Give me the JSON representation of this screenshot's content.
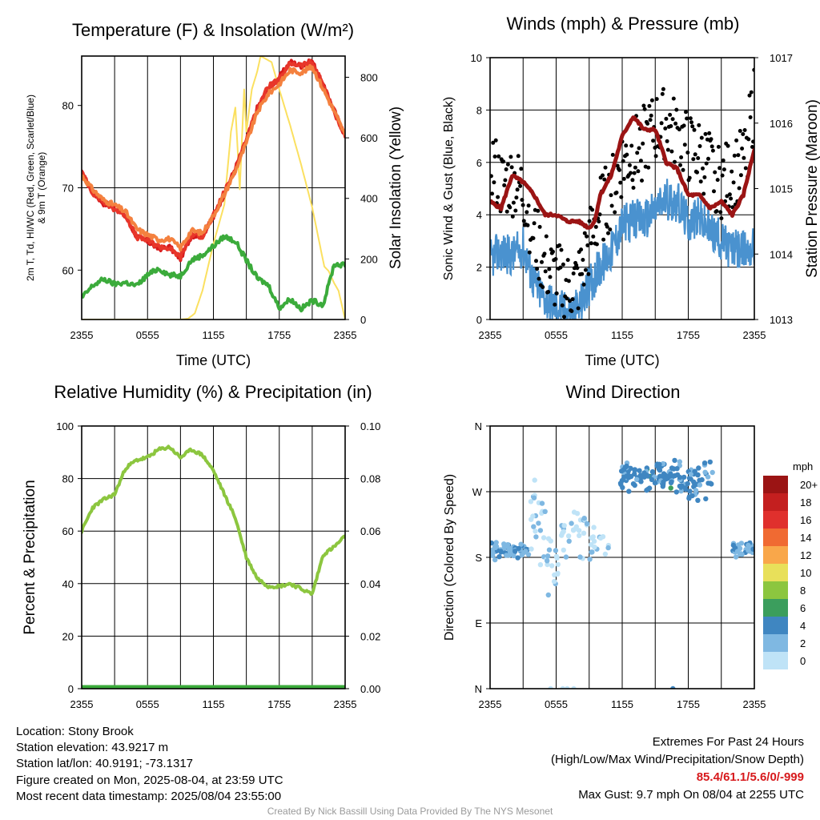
{
  "colors": {
    "temp": "#d7191c",
    "hiwc": "#e8362a",
    "t9m": "#f4813f",
    "dew": "#3bab3b",
    "solar": "#fbe060",
    "gust": "#000000",
    "wind": "#4a92cf",
    "pressure": "#9b1414",
    "rh": "#8cc63f",
    "precip": "#3bab3b"
  },
  "chart_data": [
    {
      "type": "line",
      "title": "Temperature (F) & Insolation (W/m²)",
      "xlabel": "Time (UTC)",
      "ylabel": "2m T, Td, HI/WC (Red, Green, Scarlet/Blue) & 9m T (Orange)",
      "y2label": "Solar Insolation (Yellow)",
      "xticks": [
        "2355",
        "0555",
        "1155",
        "1755",
        "2355"
      ],
      "yticks": [
        "60",
        "70",
        "80"
      ],
      "y2ticks": [
        "0",
        "200",
        "400",
        "600",
        "800"
      ],
      "x_hours": [
        0,
        24
      ],
      "ylim": [
        54,
        86
      ],
      "y2lim": [
        0,
        870
      ],
      "grid": true,
      "series": [
        {
          "key": "temp",
          "x": [
            0,
            1,
            2,
            3,
            4,
            5,
            6,
            7,
            8,
            9,
            10,
            11,
            12,
            13,
            14,
            15,
            16,
            17,
            18,
            19,
            20,
            21,
            22,
            23,
            24
          ],
          "values": [
            71.8,
            69.5,
            68.1,
            67.6,
            66.5,
            64.1,
            63.5,
            62.6,
            62.8,
            61.4,
            64.2,
            64.2,
            66.4,
            69.3,
            72.4,
            75.8,
            79.7,
            82.1,
            83.4,
            85.3,
            84.8,
            85.4,
            82.4,
            79.4,
            76.3
          ]
        },
        {
          "key": "hiwc",
          "x": [
            0,
            1,
            2,
            3,
            4,
            5,
            6,
            7,
            8,
            9,
            10,
            11,
            12,
            13,
            14,
            15,
            16,
            17,
            18,
            19,
            20,
            21,
            22,
            23,
            24
          ],
          "values": [
            71.9,
            69.4,
            68.3,
            67.4,
            66.7,
            64.0,
            63.6,
            62.9,
            62.6,
            61.6,
            64.3,
            64.1,
            66.6,
            69.5,
            72.2,
            75.9,
            79.6,
            82.3,
            83.1,
            85.1,
            84.9,
            85.2,
            82.6,
            79.2,
            76.4
          ]
        },
        {
          "key": "t9m",
          "x": [
            0,
            1,
            2,
            3,
            4,
            5,
            6,
            7,
            8,
            9,
            10,
            11,
            12,
            13,
            14,
            15,
            16,
            17,
            18,
            19,
            20,
            21,
            22,
            23,
            24
          ],
          "values": [
            71.5,
            69.8,
            68.5,
            67.9,
            67.1,
            65.0,
            64.3,
            63.7,
            63.8,
            62.7,
            64.8,
            64.5,
            66.6,
            69.2,
            72.1,
            75.4,
            79.2,
            81.4,
            82.6,
            84.3,
            84.0,
            84.7,
            82.0,
            79.3,
            76.4
          ]
        },
        {
          "key": "dew",
          "x": [
            0,
            1,
            2,
            3,
            4,
            5,
            6,
            7,
            8,
            9,
            10,
            11,
            12,
            13,
            14,
            15,
            16,
            17,
            18,
            19,
            20,
            21,
            22,
            23,
            24
          ],
          "values": [
            56.6,
            58.1,
            58.9,
            58.3,
            58.5,
            58.1,
            59.4,
            60.2,
            59.4,
            59.3,
            61.2,
            61.8,
            62.9,
            64.1,
            63.5,
            61.2,
            59.0,
            58.2,
            55.4,
            56.5,
            55.3,
            56.3,
            55.8,
            60.7,
            60.6
          ]
        },
        {
          "key": "solar",
          "axis": "y2",
          "x": [
            0,
            4,
            9,
            9.7,
            10.3,
            11,
            12,
            13,
            13.6,
            14,
            14.4,
            14.8,
            15,
            15.5,
            16,
            16.3,
            16.8,
            17.3,
            18,
            19,
            20,
            21,
            22.1,
            22.5,
            23,
            23.4,
            24
          ],
          "values": [
            0,
            0,
            0,
            3,
            20,
            95,
            250,
            380,
            620,
            700,
            430,
            760,
            620,
            760,
            820,
            870,
            860,
            850,
            760,
            640,
            510,
            370,
            175,
            160,
            120,
            95,
            0
          ]
        }
      ]
    },
    {
      "type": "line",
      "title": "Winds (mph) & Pressure (mb)",
      "xlabel": "Time (UTC)",
      "ylabel": "Sonic Wind & Gust (Blue, Black)",
      "y2label": "Station Pressure (Maroon)",
      "xticks": [
        "2355",
        "0555",
        "1155",
        "1755",
        "2355"
      ],
      "yticks": [
        "0",
        "2",
        "4",
        "6",
        "8",
        "10"
      ],
      "y2ticks": [
        "1013",
        "1014",
        "1015",
        "1016",
        "1017"
      ],
      "x_hours": [
        0,
        24
      ],
      "ylim": [
        0,
        10
      ],
      "y2lim": [
        1013,
        1017
      ],
      "grid": true,
      "series": [
        {
          "key": "wind",
          "name": "Sonic Wind",
          "x": [
            0,
            1,
            2,
            3,
            4,
            5,
            6,
            7,
            8,
            9,
            10,
            11,
            12,
            13,
            14,
            15,
            16,
            17,
            18,
            19,
            20,
            21,
            22,
            23,
            24
          ],
          "values": [
            2.3,
            2.6,
            2.4,
            2.8,
            1.4,
            0.8,
            0.5,
            0.3,
            0.4,
            1.3,
            2.0,
            2.6,
            3.6,
            3.8,
            3.8,
            4.2,
            4.6,
            4.5,
            3.7,
            3.9,
            3.4,
            3.0,
            2.7,
            2.6,
            2.8
          ]
        },
        {
          "key": "gust",
          "name": "Gust",
          "x": [
            0,
            1,
            2,
            3,
            4,
            5,
            6,
            7,
            8,
            9,
            10,
            11,
            12,
            13,
            14,
            15,
            16,
            17,
            18,
            19,
            20,
            21,
            22,
            23,
            24
          ],
          "values": [
            6.2,
            5.1,
            5.3,
            4.9,
            3.2,
            2.0,
            1.6,
            1.2,
            1.4,
            2.9,
            4.1,
            4.8,
            6.0,
            6.3,
            6.8,
            7.3,
            7.5,
            7.0,
            6.5,
            6.3,
            5.8,
            5.2,
            5.6,
            5.9,
            8.3
          ]
        },
        {
          "key": "pressure",
          "name": "Station Pressure",
          "axis": "y2",
          "x": [
            0,
            1,
            2,
            3,
            4,
            5,
            6,
            7,
            8,
            9,
            9.5,
            10,
            11,
            12,
            13,
            14,
            15,
            16,
            17,
            18,
            19,
            20,
            21,
            22,
            23,
            24
          ],
          "values": [
            1014.8,
            1014.7,
            1015.2,
            1015.1,
            1014.9,
            1014.6,
            1014.6,
            1014.5,
            1014.5,
            1014.4,
            1014.5,
            1014.9,
            1015.2,
            1015.8,
            1016.1,
            1015.9,
            1015.9,
            1015.4,
            1015.3,
            1014.9,
            1014.9,
            1014.7,
            1014.8,
            1014.6,
            1014.9,
            1015.6
          ]
        }
      ]
    },
    {
      "type": "line",
      "title": "Relative Humidity (%) & Precipitation (in)",
      "xlabel": "",
      "ylabel": "Percent & Precipitation",
      "xticks": [
        "2355",
        "0555",
        "1155",
        "1755",
        "2355"
      ],
      "yticks": [
        "0",
        "20",
        "40",
        "60",
        "80",
        "100"
      ],
      "y2ticks": [
        "0.00",
        "0.02",
        "0.04",
        "0.06",
        "0.08",
        "0.10"
      ],
      "x_hours": [
        0,
        24
      ],
      "ylim": [
        0,
        100
      ],
      "y2lim": [
        0,
        0.1
      ],
      "grid": true,
      "series": [
        {
          "key": "rh",
          "name": "Relative Humidity",
          "x": [
            0,
            1,
            2,
            3,
            4,
            5,
            6,
            7,
            8,
            9,
            10,
            11,
            12,
            13,
            14,
            15,
            16,
            17,
            18,
            19,
            20,
            21,
            22,
            23,
            24
          ],
          "values": [
            60,
            69,
            72,
            74,
            84,
            87,
            88,
            91,
            92,
            88,
            91,
            89,
            83,
            74,
            65,
            50,
            42,
            39,
            39,
            40,
            38,
            36,
            51,
            54,
            58
          ]
        },
        {
          "key": "precip",
          "name": "Precipitation",
          "axis": "y2",
          "x": [
            0,
            24
          ],
          "values": [
            0,
            0
          ]
        }
      ]
    },
    {
      "type": "scatter",
      "title": "Wind Direction",
      "ylabel": "Direction (Colored By Speed)",
      "xticks": [
        "2355",
        "0555",
        "1155",
        "1755",
        "2355"
      ],
      "yticks": [
        "N",
        "E",
        "S",
        "W",
        "N"
      ],
      "x_hours": [
        0,
        24
      ],
      "ylim": [
        0,
        360
      ],
      "grid": true,
      "legend": {
        "title": "mph",
        "labels": [
          "20+",
          "18",
          "16",
          "14",
          "12",
          "10",
          "8",
          "6",
          "4",
          "2",
          "0"
        ],
        "colors": [
          "#9b1414",
          "#c41f1f",
          "#e0302d",
          "#f06a32",
          "#f9a74a",
          "#e8e05a",
          "#8cc63f",
          "#3b9e5d",
          "#3f86c1",
          "#7fb8e2",
          "#bfe3f7"
        ]
      },
      "clusters": [
        {
          "x0": 0.1,
          "x1": 3.6,
          "dir_mean": 190,
          "dir_spread": 10,
          "speed_mean": 2.6,
          "count": 60
        },
        {
          "x0": 3.6,
          "x1": 5.0,
          "dir_mean": 235,
          "dir_spread": 55,
          "speed_mean": 0.8,
          "count": 22
        },
        {
          "x0": 5.0,
          "x1": 6.4,
          "dir_mean": 170,
          "dir_spread": 40,
          "speed_mean": 0.6,
          "count": 18
        },
        {
          "x0": 6.4,
          "x1": 9.0,
          "dir_mean": 210,
          "dir_spread": 30,
          "speed_mean": 0.7,
          "count": 28
        },
        {
          "x0": 9.0,
          "x1": 10.8,
          "dir_mean": 198,
          "dir_spread": 20,
          "speed_mean": 1.2,
          "count": 16
        },
        {
          "x0": 11.8,
          "x1": 16.8,
          "dir_mean": 292,
          "dir_spread": 16,
          "speed_mean": 3.8,
          "count": 95
        },
        {
          "x0": 16.8,
          "x1": 20.2,
          "dir_mean": 285,
          "dir_spread": 22,
          "speed_mean": 3.4,
          "count": 55
        },
        {
          "x0": 22.0,
          "x1": 24.0,
          "dir_mean": 190,
          "dir_spread": 8,
          "speed_mean": 2.8,
          "count": 30
        }
      ],
      "calm": [
        {
          "x": 5.5,
          "dir": 0,
          "speed": 0.3
        },
        {
          "x": 6.6,
          "dir": 0,
          "speed": 0.3
        },
        {
          "x": 7.0,
          "dir": 0,
          "speed": 0.3
        },
        {
          "x": 7.6,
          "dir": 0,
          "speed": 0.3
        },
        {
          "x": 16.6,
          "dir": 0,
          "speed": 4.2
        }
      ]
    }
  ],
  "info": {
    "location": "Location: Stony Brook",
    "elevation": "Station elevation: 43.9217 m",
    "latlon": "Station lat/lon: 40.9191; -73.1317",
    "created": "Figure created on Mon, 2025-08-04, at 23:59 UTC",
    "recent": "Most recent data timestamp: 2025/08/04 23:55:00"
  },
  "extremes": {
    "title": "Extremes For Past 24 Hours",
    "subtitle": "(High/Low/Max Wind/Precipitation/Snow Depth)",
    "values": "85.4/61.1/5.6/0/-999",
    "gust": "Max Gust: 9.7 mph On 08/04 at 2255 UTC"
  },
  "credit": "Created By Nick Bassill Using Data Provided By The NYS Mesonet"
}
